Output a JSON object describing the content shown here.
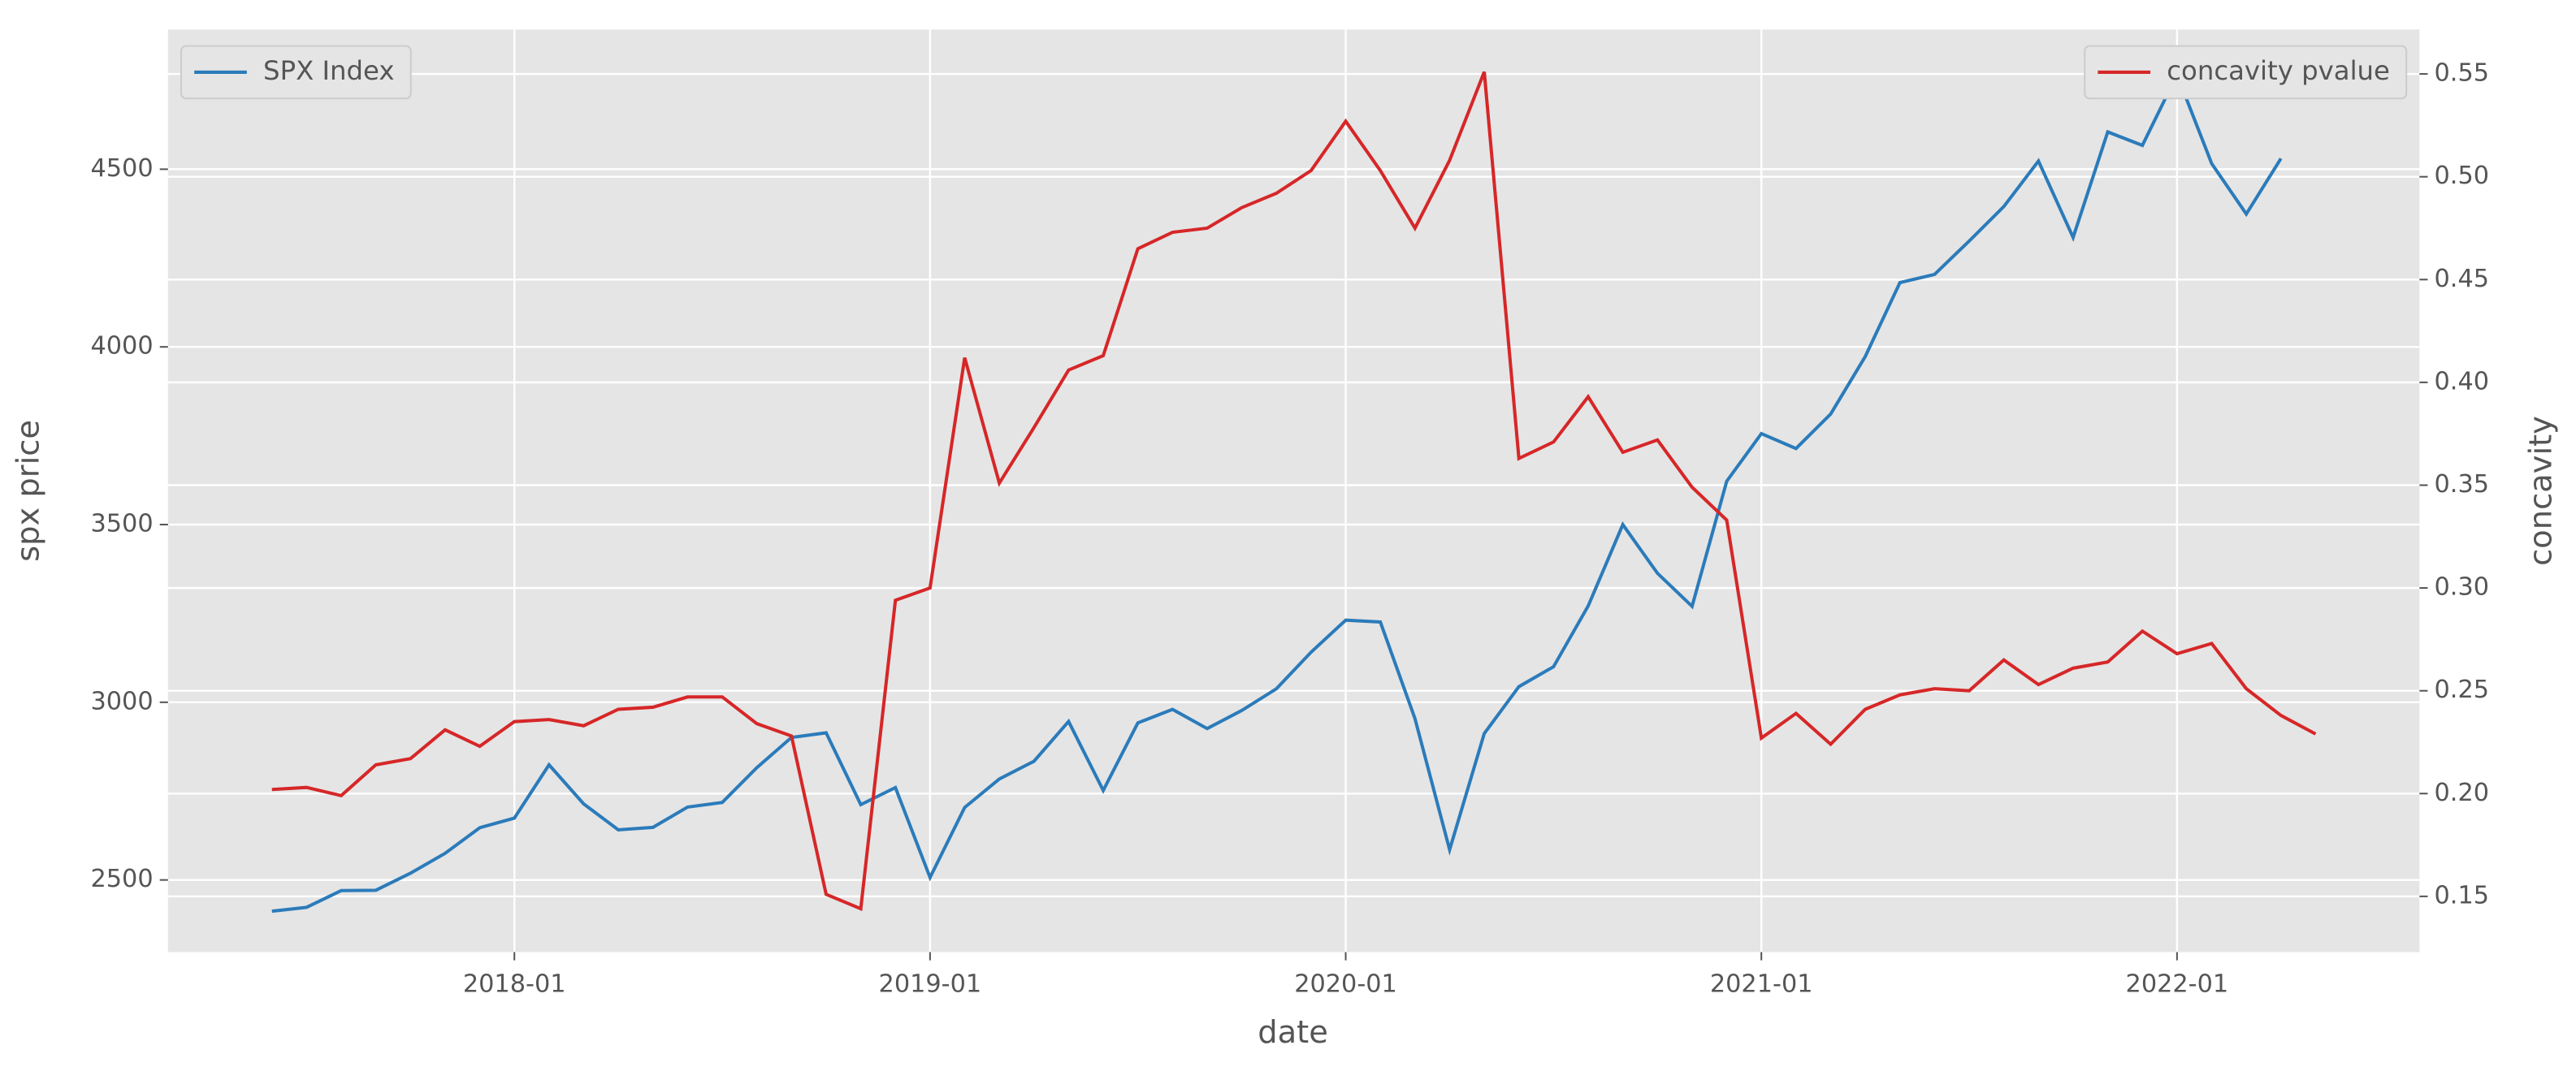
{
  "chart_data": {
    "type": "line",
    "x_label": "date",
    "y_label": "spx price",
    "y2_label": "concavity",
    "x": [
      "2017-06",
      "2017-07",
      "2017-08",
      "2017-09",
      "2017-10",
      "2017-11",
      "2017-12",
      "2018-01",
      "2018-02",
      "2018-03",
      "2018-04",
      "2018-05",
      "2018-06",
      "2018-07",
      "2018-08",
      "2018-09",
      "2018-10",
      "2018-11",
      "2018-12",
      "2019-01",
      "2019-02",
      "2019-03",
      "2019-04",
      "2019-05",
      "2019-06",
      "2019-07",
      "2019-08",
      "2019-09",
      "2019-10",
      "2019-11",
      "2019-12",
      "2020-01",
      "2020-02",
      "2020-03",
      "2020-04",
      "2020-05",
      "2020-06",
      "2020-07",
      "2020-08",
      "2020-09",
      "2020-10",
      "2020-11",
      "2020-12",
      "2021-01",
      "2021-02",
      "2021-03",
      "2021-04",
      "2021-05",
      "2021-06",
      "2021-07",
      "2021-08",
      "2021-09",
      "2021-10",
      "2021-11",
      "2021-12",
      "2022-01",
      "2022-02",
      "2022-03",
      "2022-04",
      "2022-05"
    ],
    "series": [
      {
        "name": "SPX Index",
        "color": "#2b7bba",
        "axis": "y",
        "legend": "upper left",
        "values": [
          2412,
          2423,
          2470,
          2471,
          2519,
          2575,
          2647,
          2674,
          2824,
          2714,
          2641,
          2648,
          2705,
          2718,
          2816,
          2901,
          2914,
          2712,
          2760,
          2507,
          2704,
          2784,
          2834,
          2946,
          2752,
          2942,
          2980,
          2926,
          2977,
          3038,
          3141,
          3231,
          3226,
          2954,
          2585,
          2912,
          3044,
          3100,
          3271,
          3500,
          3363,
          3270,
          3622,
          3756,
          3714,
          3811,
          3973,
          4181,
          4204,
          4298,
          4395,
          4523,
          4308,
          4605,
          4567,
          4766,
          4516,
          4374,
          4530,
          null
        ]
      },
      {
        "name": "concavity pvalue",
        "color": "#d62728",
        "axis": "y2",
        "legend": "upper right",
        "values": [
          0.202,
          0.203,
          0.199,
          0.214,
          0.217,
          0.231,
          0.223,
          0.235,
          0.236,
          0.233,
          0.241,
          0.242,
          0.247,
          0.247,
          0.234,
          0.228,
          0.151,
          0.144,
          0.294,
          0.3,
          0.412,
          0.351,
          0.378,
          0.406,
          0.413,
          0.465,
          0.473,
          0.475,
          0.485,
          0.492,
          0.503,
          0.527,
          0.503,
          0.475,
          0.508,
          0.551,
          0.363,
          0.371,
          0.393,
          0.366,
          0.372,
          0.349,
          0.333,
          0.227,
          0.239,
          0.224,
          0.241,
          0.248,
          0.251,
          0.25,
          0.265,
          0.253,
          0.261,
          0.264,
          0.279,
          0.268,
          0.273,
          0.251,
          0.238,
          0.229
        ]
      }
    ],
    "xlim": [
      "2017-03",
      "2022-08"
    ],
    "xticks": [
      "2018-01",
      "2019-01",
      "2020-01",
      "2021-01",
      "2022-01"
    ],
    "ylim": [
      2297,
      4893
    ],
    "yticks": [
      2500,
      3000,
      3500,
      4000,
      4500
    ],
    "y2lim": [
      0.1229,
      0.5716
    ],
    "y2ticks": [
      0.15,
      {
        "value": 0.2,
        "label": "0.20"
      },
      0.25,
      {
        "value": 0.3,
        "label": "0.30"
      },
      0.35,
      {
        "value": 0.4,
        "label": "0.40"
      },
      0.45,
      {
        "value": 0.5,
        "label": "0.50"
      },
      0.55
    ],
    "grid": true
  }
}
